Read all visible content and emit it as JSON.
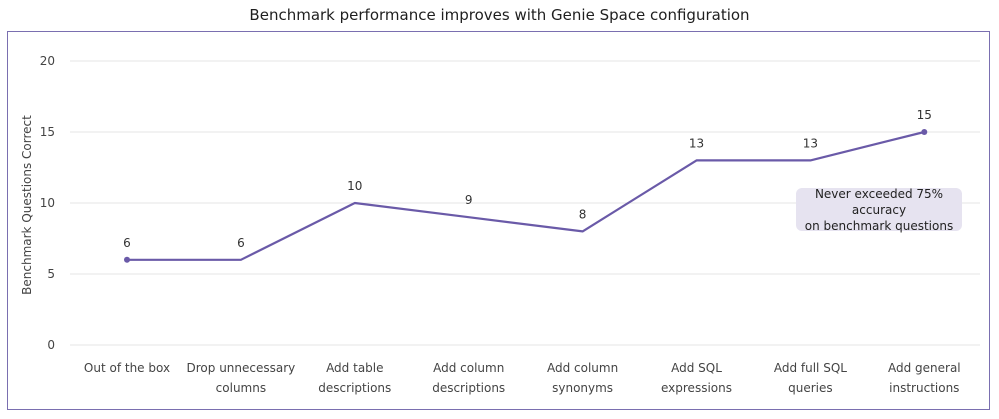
{
  "title": "Benchmark performance improves with Genie Space configuration",
  "annotation": {
    "line1": "Never exceeded 75% accuracy",
    "line2": "on benchmark questions"
  },
  "colors": {
    "line": "#6a5aa8",
    "grid": "#e6e6e6",
    "frame": "#7a6fb0",
    "callout_bg": "#e6e3f0"
  },
  "chart_data": {
    "type": "line",
    "title": "Benchmark performance improves with Genie Space configuration",
    "xlabel": "",
    "ylabel": "Benchmark Questions Correct",
    "ylim": [
      0,
      20
    ],
    "yticks": [
      0,
      5,
      10,
      15,
      20
    ],
    "grid": true,
    "categories": [
      [
        "Out of the box"
      ],
      [
        "Drop unnecessary",
        "columns"
      ],
      [
        "Add table",
        "descriptions"
      ],
      [
        "Add column",
        "descriptions"
      ],
      [
        "Add column",
        "synonyms"
      ],
      [
        "Add SQL",
        "expressions"
      ],
      [
        "Add full SQL",
        "queries"
      ],
      [
        "Add general",
        "instructions"
      ]
    ],
    "series": [
      {
        "values": [
          6,
          6,
          10,
          9,
          8,
          13,
          13,
          15
        ],
        "labels": [
          "6",
          "6",
          "10",
          "9",
          "8",
          "13",
          "13",
          "15"
        ],
        "markers": [
          true,
          false,
          false,
          false,
          false,
          false,
          false,
          true
        ]
      }
    ]
  }
}
